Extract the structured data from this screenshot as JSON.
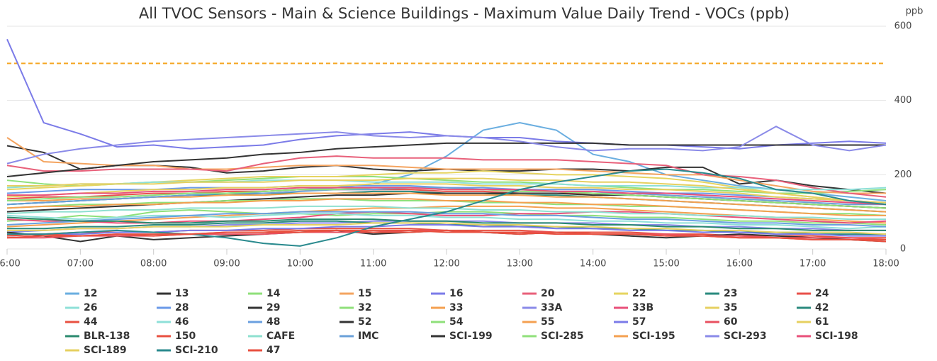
{
  "chart_data": {
    "type": "line",
    "title": "All TVOC Sensors - Main & Science Buildings - Maximum Value Daily Trend - VOCs (ppb)",
    "y_unit": "ppb",
    "x": [
      6,
      6.5,
      7,
      7.5,
      8,
      8.5,
      9,
      9.5,
      10,
      10.5,
      11,
      11.5,
      12,
      12.5,
      13,
      13.5,
      14,
      14.5,
      15,
      15.5,
      16,
      16.5,
      17,
      17.5,
      18
    ],
    "xlim": [
      6,
      18
    ],
    "xticks": [
      {
        "value": 6,
        "label": "06:00"
      },
      {
        "value": 7,
        "label": "07:00"
      },
      {
        "value": 8,
        "label": "08:00"
      },
      {
        "value": 9,
        "label": "09:00"
      },
      {
        "value": 10,
        "label": "10:00"
      },
      {
        "value": 11,
        "label": "11:00"
      },
      {
        "value": 12,
        "label": "12:00"
      },
      {
        "value": 13,
        "label": "13:00"
      },
      {
        "value": 14,
        "label": "14:00"
      },
      {
        "value": 15,
        "label": "15:00"
      },
      {
        "value": 16,
        "label": "16:00"
      },
      {
        "value": 17,
        "label": "17:00"
      },
      {
        "value": 18,
        "label": "18:00"
      }
    ],
    "ylim": [
      0,
      600
    ],
    "yticks": [
      0,
      200,
      400,
      600
    ],
    "grid": true,
    "threshold": {
      "value": 500,
      "color": "#f5a623"
    },
    "series": [
      {
        "name": "12",
        "color": "#6aaee0",
        "values": [
          120,
          125,
          130,
          135,
          140,
          145,
          150,
          155,
          160,
          165,
          175,
          200,
          250,
          320,
          340,
          320,
          255,
          235,
          200,
          185,
          170,
          160,
          150,
          140,
          130
        ]
      },
      {
        "name": "13",
        "color": "#333333",
        "values": [
          278,
          260,
          215,
          225,
          225,
          220,
          205,
          210,
          220,
          225,
          215,
          210,
          215,
          210,
          210,
          215,
          215,
          210,
          220,
          220,
          175,
          185,
          170,
          160,
          150
        ]
      },
      {
        "name": "14",
        "color": "#8fe07a",
        "values": [
          185,
          175,
          170,
          175,
          180,
          180,
          185,
          190,
          195,
          195,
          195,
          190,
          185,
          180,
          180,
          175,
          170,
          165,
          160,
          160,
          155,
          150,
          150,
          155,
          160
        ]
      },
      {
        "name": "15",
        "color": "#f4a460",
        "values": [
          300,
          235,
          230,
          225,
          225,
          215,
          215,
          220,
          225,
          225,
          225,
          220,
          215,
          215,
          215,
          215,
          210,
          205,
          200,
          200,
          185,
          170,
          155,
          150,
          150
        ]
      },
      {
        "name": "16",
        "color": "#7b7be8",
        "values": [
          565,
          340,
          310,
          275,
          280,
          270,
          275,
          280,
          295,
          305,
          310,
          315,
          305,
          300,
          300,
          290,
          285,
          280,
          280,
          275,
          270,
          280,
          285,
          290,
          285
        ]
      },
      {
        "name": "20",
        "color": "#e8607a",
        "values": [
          225,
          210,
          210,
          215,
          215,
          215,
          210,
          230,
          245,
          250,
          245,
          245,
          245,
          240,
          240,
          240,
          235,
          230,
          225,
          200,
          195,
          185,
          165,
          150,
          140
        ]
      },
      {
        "name": "22",
        "color": "#e6d460",
        "values": [
          160,
          165,
          170,
          175,
          180,
          185,
          190,
          195,
          195,
          195,
          200,
          205,
          205,
          210,
          205,
          200,
          200,
          195,
          190,
          180,
          165,
          150,
          140,
          130,
          120
        ]
      },
      {
        "name": "23",
        "color": "#2a8a7e",
        "values": [
          120,
          125,
          130,
          135,
          140,
          145,
          145,
          150,
          150,
          150,
          155,
          155,
          150,
          150,
          145,
          145,
          140,
          135,
          130,
          125,
          120,
          115,
          110,
          105,
          100
        ]
      },
      {
        "name": "24",
        "color": "#e8504a",
        "values": [
          135,
          140,
          140,
          145,
          150,
          150,
          155,
          155,
          160,
          160,
          160,
          160,
          155,
          155,
          150,
          150,
          150,
          145,
          140,
          135,
          130,
          125,
          120,
          115,
          110
        ]
      },
      {
        "name": "26",
        "color": "#8ee0d8",
        "values": [
          165,
          170,
          175,
          175,
          180,
          180,
          180,
          185,
          185,
          185,
          180,
          180,
          180,
          175,
          175,
          175,
          170,
          170,
          170,
          165,
          165,
          160,
          160,
          160,
          165
        ]
      },
      {
        "name": "28",
        "color": "#6a9ae8",
        "values": [
          150,
          155,
          160,
          160,
          160,
          165,
          165,
          165,
          170,
          170,
          170,
          170,
          165,
          165,
          160,
          160,
          160,
          155,
          150,
          150,
          145,
          140,
          135,
          130,
          125
        ]
      },
      {
        "name": "29",
        "color": "#333333",
        "values": [
          100,
          105,
          110,
          115,
          120,
          125,
          130,
          135,
          140,
          145,
          145,
          150,
          150,
          150,
          150,
          150,
          145,
          145,
          140,
          135,
          130,
          125,
          120,
          115,
          110
        ]
      },
      {
        "name": "32",
        "color": "#8fe07a",
        "values": [
          75,
          80,
          90,
          85,
          100,
          105,
          100,
          95,
          95,
          90,
          95,
          95,
          100,
          100,
          95,
          90,
          90,
          85,
          85,
          80,
          75,
          75,
          70,
          70,
          65
        ]
      },
      {
        "name": "33",
        "color": "#f4a050",
        "values": [
          60,
          65,
          70,
          75,
          80,
          85,
          90,
          95,
          100,
          105,
          110,
          110,
          115,
          115,
          115,
          110,
          110,
          105,
          100,
          95,
          90,
          85,
          80,
          75,
          70
        ]
      },
      {
        "name": "33A",
        "color": "#8a8ae8",
        "values": [
          45,
          50,
          55,
          55,
          60,
          60,
          65,
          65,
          70,
          70,
          75,
          75,
          75,
          75,
          70,
          70,
          70,
          65,
          65,
          60,
          60,
          55,
          55,
          50,
          50
        ]
      },
      {
        "name": "33B",
        "color": "#e8507a",
        "values": [
          80,
          75,
          75,
          70,
          70,
          75,
          75,
          80,
          85,
          95,
          100,
          95,
          90,
          90,
          95,
          95,
          100,
          100,
          95,
          90,
          85,
          80,
          75,
          70,
          75
        ]
      },
      {
        "name": "35",
        "color": "#e6d060",
        "values": [
          140,
          145,
          150,
          155,
          160,
          160,
          165,
          165,
          170,
          170,
          175,
          175,
          175,
          170,
          170,
          165,
          165,
          160,
          160,
          155,
          150,
          140,
          135,
          130,
          125
        ]
      },
      {
        "name": "42",
        "color": "#2a8a7e",
        "values": [
          55,
          55,
          60,
          60,
          65,
          65,
          70,
          70,
          75,
          75,
          70,
          70,
          65,
          65,
          60,
          60,
          55,
          55,
          50,
          50,
          45,
          45,
          40,
          40,
          40
        ]
      },
      {
        "name": "44",
        "color": "#e85040",
        "values": [
          40,
          40,
          45,
          45,
          45,
          50,
          50,
          50,
          55,
          55,
          55,
          55,
          50,
          50,
          50,
          45,
          45,
          45,
          40,
          40,
          35,
          35,
          35,
          30,
          30
        ]
      },
      {
        "name": "46",
        "color": "#8ee0d8",
        "values": [
          90,
          85,
          80,
          85,
          90,
          90,
          85,
          90,
          95,
          95,
          90,
          90,
          85,
          85,
          80,
          80,
          75,
          75,
          70,
          70,
          65,
          65,
          60,
          55,
          60
        ]
      },
      {
        "name": "48",
        "color": "#6aa0e0",
        "values": [
          65,
          70,
          75,
          80,
          85,
          90,
          95,
          95,
          100,
          100,
          100,
          100,
          95,
          95,
          90,
          90,
          85,
          80,
          80,
          75,
          70,
          70,
          65,
          65,
          60
        ]
      },
      {
        "name": "52",
        "color": "#333333",
        "values": [
          45,
          35,
          20,
          35,
          25,
          30,
          35,
          40,
          45,
          50,
          40,
          45,
          50,
          45,
          40,
          45,
          40,
          35,
          30,
          35,
          40,
          35,
          30,
          25,
          20
        ]
      },
      {
        "name": "54",
        "color": "#8fe07a",
        "values": [
          110,
          115,
          120,
          120,
          125,
          125,
          130,
          130,
          135,
          135,
          130,
          130,
          130,
          125,
          125,
          120,
          120,
          115,
          115,
          110,
          105,
          100,
          95,
          95,
          90
        ]
      },
      {
        "name": "55",
        "color": "#f4a050",
        "values": [
          130,
          130,
          135,
          135,
          140,
          140,
          145,
          145,
          150,
          150,
          150,
          150,
          145,
          145,
          145,
          140,
          140,
          135,
          130,
          125,
          120,
          115,
          110,
          105,
          100
        ]
      },
      {
        "name": "57",
        "color": "#7b7be8",
        "values": [
          35,
          40,
          40,
          45,
          45,
          50,
          50,
          55,
          55,
          60,
          60,
          65,
          65,
          60,
          60,
          55,
          55,
          50,
          50,
          45,
          45,
          40,
          40,
          35,
          35
        ]
      },
      {
        "name": "60",
        "color": "#e85060",
        "values": [
          30,
          30,
          35,
          35,
          35,
          40,
          40,
          40,
          45,
          45,
          45,
          50,
          50,
          45,
          45,
          45,
          40,
          40,
          40,
          35,
          35,
          30,
          30,
          30,
          25
        ]
      },
      {
        "name": "61",
        "color": "#e6d060",
        "values": [
          170,
          170,
          175,
          175,
          175,
          180,
          180,
          180,
          185,
          185,
          185,
          190,
          190,
          190,
          185,
          185,
          180,
          180,
          175,
          170,
          160,
          150,
          140,
          130,
          120
        ]
      },
      {
        "name": "BLR-138",
        "color": "#2a8a6e",
        "values": [
          85,
          80,
          75,
          75,
          70,
          70,
          75,
          75,
          80,
          80,
          80,
          75,
          75,
          70,
          70,
          70,
          65,
          65,
          60,
          60,
          55,
          55,
          50,
          50,
          50
        ]
      },
      {
        "name": "150",
        "color": "#e85040",
        "values": [
          35,
          40,
          35,
          40,
          35,
          40,
          45,
          45,
          50,
          50,
          45,
          45,
          50,
          45,
          40,
          45,
          40,
          40,
          35,
          35,
          30,
          30,
          25,
          25,
          25
        ]
      },
      {
        "name": "CAFE",
        "color": "#8ee0d0",
        "values": [
          95,
          100,
          100,
          105,
          105,
          110,
          110,
          110,
          115,
          115,
          115,
          110,
          110,
          105,
          105,
          100,
          100,
          95,
          95,
          90,
          90,
          85,
          85,
          80,
          80
        ]
      },
      {
        "name": "IMC",
        "color": "#6aa0d8",
        "values": [
          120,
          125,
          130,
          135,
          140,
          145,
          150,
          150,
          155,
          160,
          160,
          165,
          165,
          160,
          160,
          155,
          150,
          150,
          145,
          140,
          135,
          130,
          125,
          120,
          120
        ]
      },
      {
        "name": "SCI-199",
        "color": "#333333",
        "values": [
          195,
          205,
          215,
          225,
          235,
          240,
          245,
          255,
          260,
          270,
          275,
          280,
          285,
          285,
          285,
          285,
          285,
          280,
          280,
          280,
          280,
          280,
          280,
          280,
          280
        ]
      },
      {
        "name": "SCI-285",
        "color": "#8fe07a",
        "values": [
          130,
          135,
          140,
          140,
          145,
          150,
          150,
          155,
          160,
          160,
          165,
          165,
          160,
          160,
          155,
          155,
          150,
          145,
          140,
          135,
          130,
          125,
          120,
          115,
          110
        ]
      },
      {
        "name": "SCI-195",
        "color": "#f4a050",
        "values": [
          110,
          115,
          115,
          120,
          120,
          125,
          125,
          130,
          130,
          135,
          135,
          135,
          130,
          130,
          125,
          125,
          120,
          120,
          115,
          110,
          105,
          100,
          95,
          90,
          90
        ]
      },
      {
        "name": "SCI-293",
        "color": "#8a8ae8",
        "values": [
          230,
          255,
          270,
          280,
          290,
          295,
          300,
          305,
          310,
          315,
          305,
          300,
          305,
          300,
          290,
          275,
          265,
          270,
          270,
          265,
          275,
          330,
          280,
          265,
          280
        ]
      },
      {
        "name": "SCI-198",
        "color": "#e8507a",
        "values": [
          145,
          145,
          150,
          150,
          155,
          155,
          160,
          160,
          165,
          165,
          165,
          165,
          160,
          160,
          160,
          155,
          155,
          150,
          150,
          145,
          140,
          135,
          130,
          125,
          120
        ]
      },
      {
        "name": "SCI-189",
        "color": "#e6d060",
        "values": [
          50,
          50,
          55,
          55,
          60,
          60,
          60,
          65,
          65,
          65,
          70,
          70,
          70,
          65,
          65,
          60,
          60,
          55,
          55,
          50,
          50,
          45,
          45,
          45,
          40
        ]
      },
      {
        "name": "SCI-210",
        "color": "#2a8a8e",
        "values": [
          40,
          40,
          45,
          50,
          45,
          40,
          30,
          15,
          8,
          30,
          60,
          80,
          100,
          130,
          160,
          180,
          195,
          210,
          215,
          205,
          190,
          160,
          150,
          130,
          120
        ]
      },
      {
        "name": "47",
        "color": "#e85040",
        "values": [
          30,
          35,
          35,
          40,
          40,
          40,
          45,
          45,
          45,
          50,
          50,
          50,
          45,
          45,
          45,
          40,
          40,
          40,
          35,
          35,
          30,
          30,
          25,
          25,
          20
        ]
      }
    ]
  }
}
